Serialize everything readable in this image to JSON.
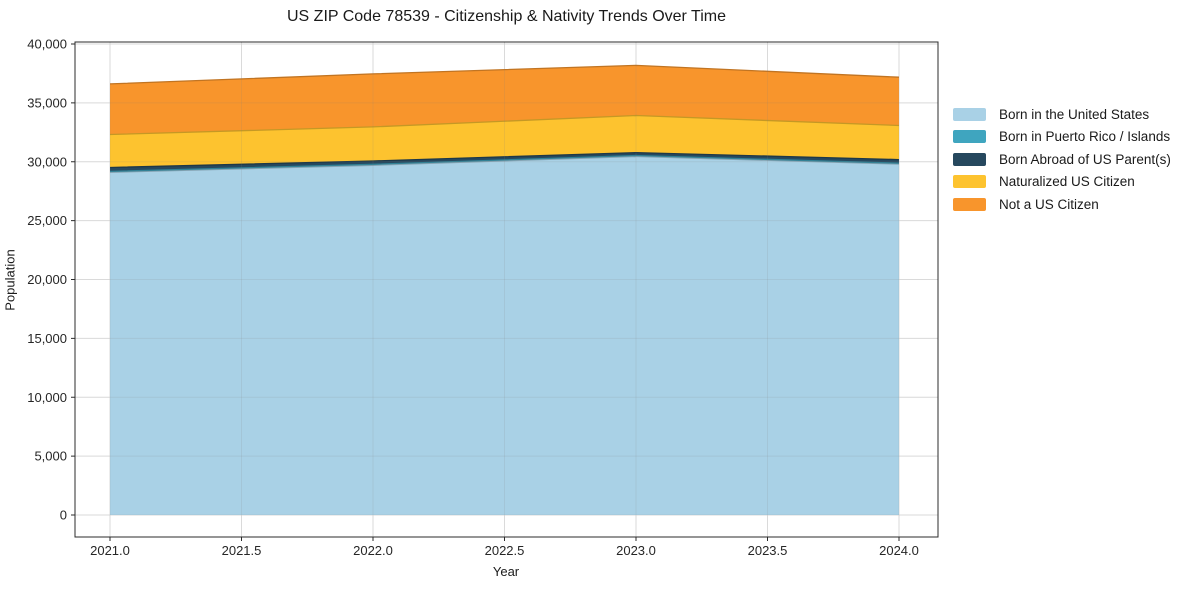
{
  "chart_data": {
    "type": "area",
    "stacked": true,
    "title": "US ZIP Code 78539 - Citizenship & Nativity Trends Over Time",
    "xlabel": "Year",
    "ylabel": "Population",
    "x": [
      2021,
      2022,
      2023,
      2024
    ],
    "series": [
      {
        "name": "Born in the United States",
        "color": "#a9d1e6",
        "values": [
          29100,
          29700,
          30450,
          29800
        ]
      },
      {
        "name": "Born in Puerto Rico / Islands",
        "color": "#3fa5bf",
        "values": [
          80,
          80,
          80,
          80
        ]
      },
      {
        "name": "Born Abroad of US Parent(s)",
        "color": "#26485e",
        "values": [
          330,
          280,
          250,
          300
        ]
      },
      {
        "name": "Naturalized US Citizen",
        "color": "#fdc32f",
        "values": [
          2800,
          2900,
          3150,
          2900
        ]
      },
      {
        "name": "Not a US Citizen",
        "color": "#f8952c",
        "values": [
          4300,
          4500,
          4250,
          4100
        ]
      }
    ],
    "totals": [
      36610,
      37460,
      38180,
      37180
    ],
    "xlim": [
      2020.85,
      2024.15
    ],
    "ylim": [
      0,
      40000
    ],
    "xticks": {
      "values": [
        2021.0,
        2021.5,
        2022.0,
        2022.5,
        2023.0,
        2023.5,
        2024.0
      ],
      "labels": [
        "2021.0",
        "2021.5",
        "2022.0",
        "2022.5",
        "2023.0",
        "2023.5",
        "2024.0"
      ]
    },
    "yticks": {
      "values": [
        0,
        5000,
        10000,
        15000,
        20000,
        25000,
        30000,
        35000,
        40000
      ],
      "labels": [
        "0",
        "5,000",
        "10,000",
        "15,000",
        "20,000",
        "25,000",
        "30,000",
        "35,000",
        "40,000"
      ]
    },
    "grid": true,
    "legend_position": "right",
    "colors": {
      "spine": "#2b2b2b",
      "grid": "#e9e9e9",
      "background": "#ffffff",
      "text": "#1a1a1a"
    }
  }
}
